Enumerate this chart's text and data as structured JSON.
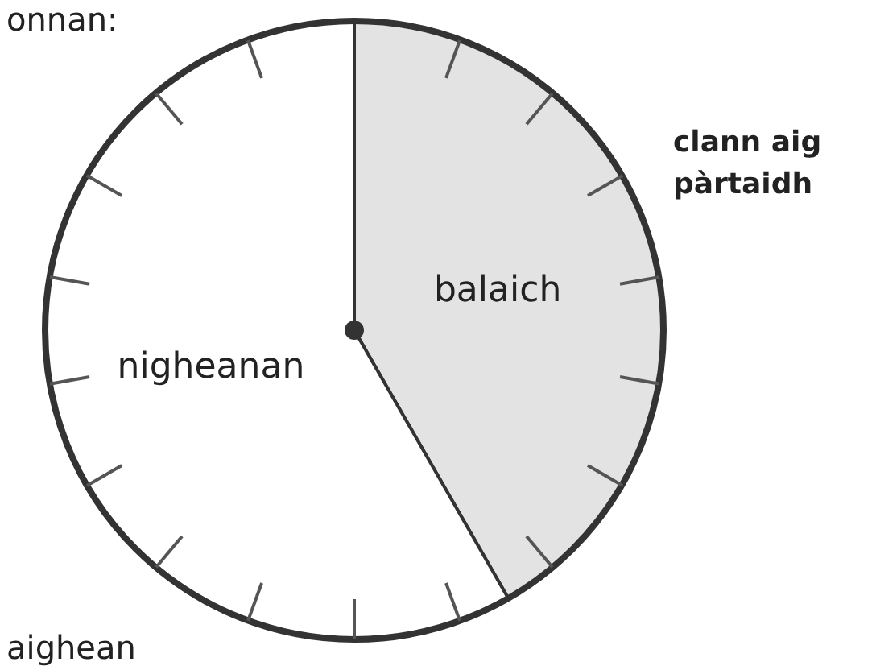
{
  "chart_data": {
    "type": "pie",
    "title": "clann aig pàrtaidh",
    "annotations": [
      "onnan:",
      "aighean"
    ],
    "categories": [
      "balaich",
      "nigheanan"
    ],
    "values": [
      41.7,
      58.3
    ],
    "colors": [
      "#e3e3e3",
      "#ffffff"
    ]
  }
}
